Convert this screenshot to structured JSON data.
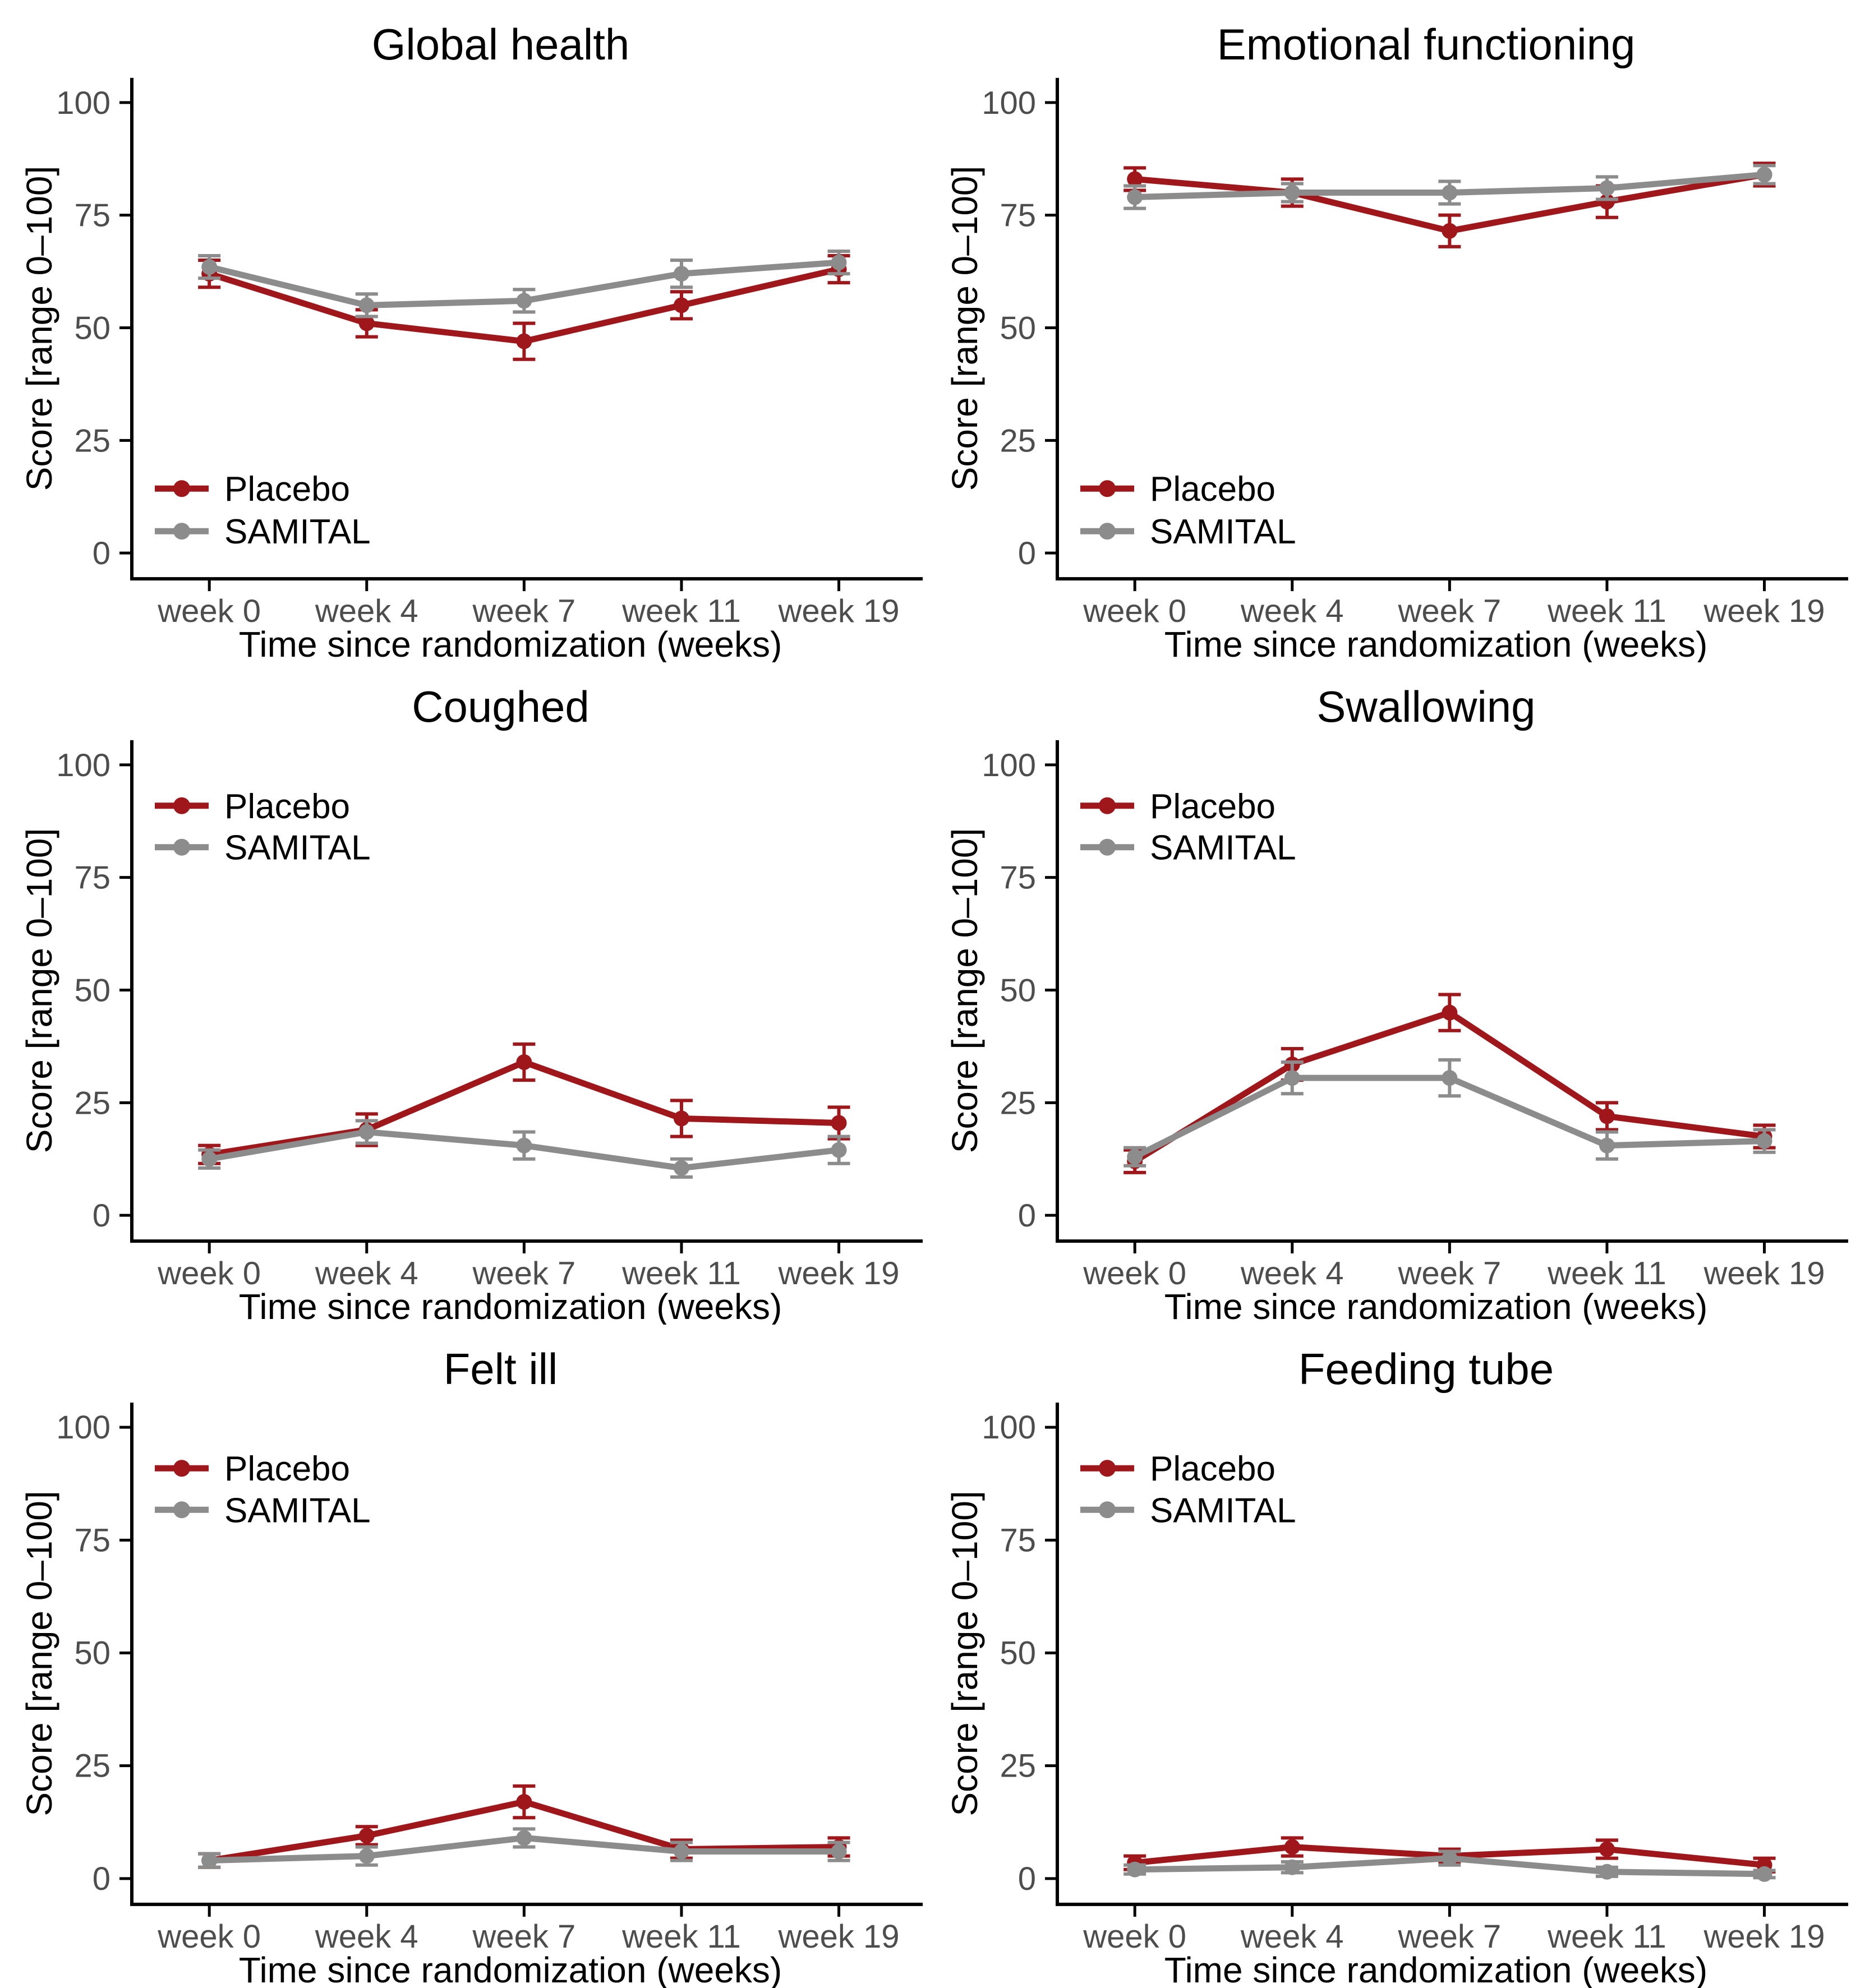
{
  "colors": {
    "placebo": "#9F161B",
    "samital": "#8C8C8C",
    "axis": "#000000",
    "tick_label": "#4D4D4D",
    "text": "#000000",
    "background": "#FFFFFF"
  },
  "legend": {
    "items": [
      {
        "label": "Placebo",
        "color": "#9F161B"
      },
      {
        "label": "SAMITAL",
        "color": "#8C8C8C"
      }
    ]
  },
  "axes": {
    "x_label": "Time since randomization (weeks)",
    "y_label": "Score [range 0–100]",
    "x_ticks": [
      "week 0",
      "week 4",
      "week 7",
      "week 11",
      "week 19"
    ],
    "y_ticks": [
      0,
      25,
      50,
      75,
      100
    ],
    "ylim": [
      0,
      100
    ],
    "grid": "off"
  },
  "chart_data": [
    {
      "type": "line",
      "title": "Global health",
      "xlabel": "Time since randomization (weeks)",
      "ylabel": "Score [range 0–100]",
      "categories": [
        "week 0",
        "week 4",
        "week 7",
        "week 11",
        "week 19"
      ],
      "ylim": [
        0,
        100
      ],
      "legend_position": "bottom-left",
      "series": [
        {
          "name": "Placebo",
          "color": "#9F161B",
          "values": [
            62,
            51,
            47,
            55,
            63
          ],
          "errors": [
            3,
            3,
            4,
            3,
            3
          ]
        },
        {
          "name": "SAMITAL",
          "color": "#8C8C8C",
          "values": [
            63.5,
            55,
            56,
            62,
            64.5
          ],
          "errors": [
            2.5,
            2.5,
            2.5,
            3,
            2.5
          ]
        }
      ]
    },
    {
      "type": "line",
      "title": "Emotional functioning",
      "xlabel": "Time since randomization (weeks)",
      "ylabel": "Score [range 0–100]",
      "categories": [
        "week 0",
        "week 4",
        "week 7",
        "week 11",
        "week 19"
      ],
      "ylim": [
        0,
        100
      ],
      "legend_position": "bottom-left",
      "series": [
        {
          "name": "Placebo",
          "color": "#9F161B",
          "values": [
            83,
            80,
            71.5,
            78,
            84
          ],
          "errors": [
            2.5,
            3,
            3.5,
            3.5,
            2.5
          ]
        },
        {
          "name": "SAMITAL",
          "color": "#8C8C8C",
          "values": [
            79,
            80,
            80,
            81,
            84
          ],
          "errors": [
            2.5,
            2,
            2.5,
            2.5,
            2
          ]
        }
      ]
    },
    {
      "type": "line",
      "title": "Coughed",
      "xlabel": "Time since randomization (weeks)",
      "ylabel": "Score [range 0–100]",
      "categories": [
        "week 0",
        "week 4",
        "week 7",
        "week 11",
        "week 19"
      ],
      "ylim": [
        0,
        100
      ],
      "legend_position": "top-left",
      "series": [
        {
          "name": "Placebo",
          "color": "#9F161B",
          "values": [
            13.5,
            19,
            34,
            21.5,
            20.5
          ],
          "errors": [
            2,
            3.5,
            4,
            4,
            3.5
          ]
        },
        {
          "name": "SAMITAL",
          "color": "#8C8C8C",
          "values": [
            12.5,
            18.5,
            15.5,
            10.5,
            14.5
          ],
          "errors": [
            2,
            2.5,
            3,
            2,
            3
          ]
        }
      ]
    },
    {
      "type": "line",
      "title": "Swallowing",
      "xlabel": "Time since randomization (weeks)",
      "ylabel": "Score [range 0–100]",
      "categories": [
        "week 0",
        "week 4",
        "week 7",
        "week 11",
        "week 19"
      ],
      "ylim": [
        0,
        100
      ],
      "legend_position": "top-left",
      "series": [
        {
          "name": "Placebo",
          "color": "#9F161B",
          "values": [
            12,
            33.5,
            45,
            22,
            17.5
          ],
          "errors": [
            2.5,
            3.5,
            4,
            3,
            2.5
          ]
        },
        {
          "name": "SAMITAL",
          "color": "#8C8C8C",
          "values": [
            13,
            30.5,
            30.5,
            15.5,
            16.5
          ],
          "errors": [
            2,
            3.5,
            4,
            3,
            2.5
          ]
        }
      ]
    },
    {
      "type": "line",
      "title": "Felt ill",
      "xlabel": "Time since randomization (weeks)",
      "ylabel": "Score [range 0–100]",
      "categories": [
        "week 0",
        "week 4",
        "week 7",
        "week 11",
        "week 19"
      ],
      "ylim": [
        0,
        100
      ],
      "legend_position": "top-left",
      "series": [
        {
          "name": "Placebo",
          "color": "#9F161B",
          "values": [
            4,
            9.5,
            17,
            6.5,
            7
          ],
          "errors": [
            1.5,
            2,
            3.5,
            2,
            2
          ]
        },
        {
          "name": "SAMITAL",
          "color": "#8C8C8C",
          "values": [
            4,
            5,
            9,
            6,
            6
          ],
          "errors": [
            1.5,
            2,
            2,
            2,
            2
          ]
        }
      ]
    },
    {
      "type": "line",
      "title": "Feeding tube",
      "xlabel": "Time since randomization (weeks)",
      "ylabel": "Score [range 0–100]",
      "categories": [
        "week 0",
        "week 4",
        "week 7",
        "week 11",
        "week 19"
      ],
      "ylim": [
        0,
        100
      ],
      "legend_position": "top-left",
      "series": [
        {
          "name": "Placebo",
          "color": "#9F161B",
          "values": [
            3.5,
            7,
            5,
            6.5,
            3
          ],
          "errors": [
            1.5,
            2,
            1.5,
            2,
            1.5
          ]
        },
        {
          "name": "SAMITAL",
          "color": "#8C8C8C",
          "values": [
            2,
            2.5,
            4.5,
            1.5,
            1
          ],
          "errors": [
            1,
            1.2,
            1.5,
            1,
            0.8
          ]
        }
      ]
    }
  ]
}
